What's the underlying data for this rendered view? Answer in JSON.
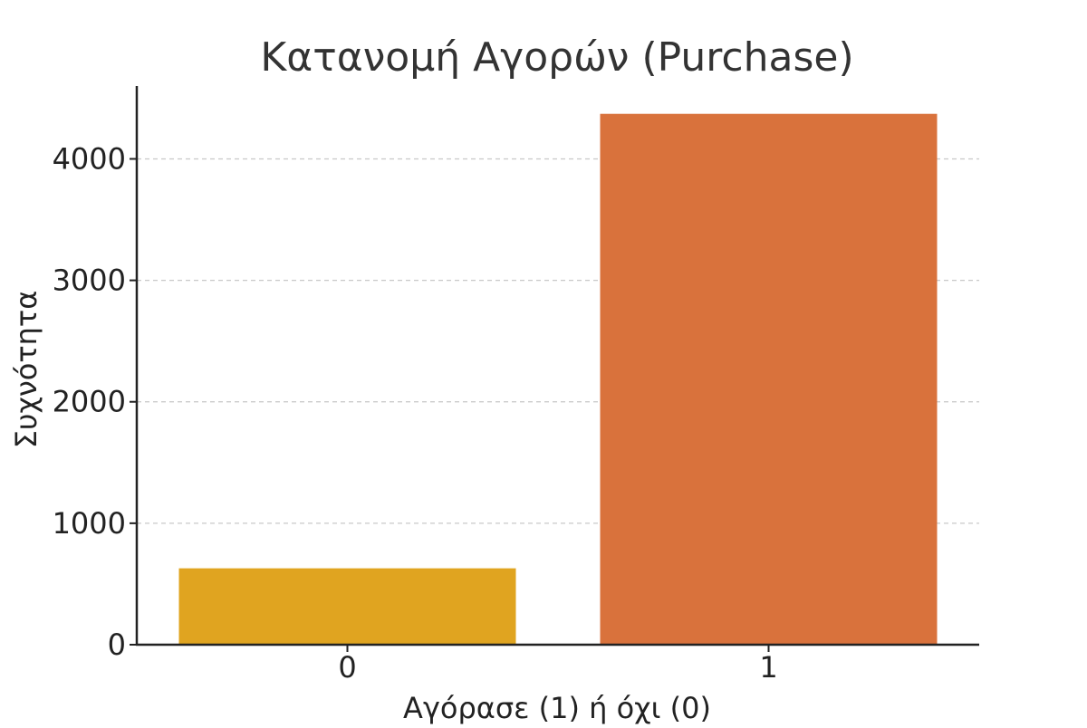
{
  "chart_data": {
    "type": "bar",
    "title": "Κατανομή Αγορών (Purchase)",
    "xlabel": "Αγόρασε (1) ή όχι (0)",
    "ylabel": "Συχνότητα",
    "categories": [
      "0",
      "1"
    ],
    "values": [
      629,
      4371
    ],
    "colors": [
      "#E0A420",
      "#D9723C"
    ],
    "ylim": [
      0,
      4600
    ],
    "yticks": [
      0,
      1000,
      2000,
      3000,
      4000
    ],
    "grid": "horizontal-dashed",
    "legend": "none"
  }
}
